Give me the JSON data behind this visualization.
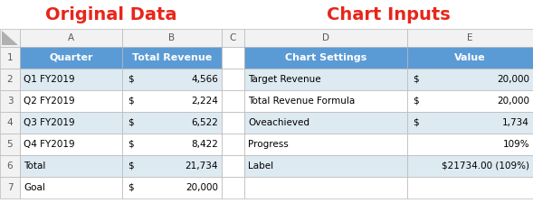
{
  "title_left": "Original Data",
  "title_right": "Chart Inputs",
  "title_color": "#E8251A",
  "title_fontsize": 14,
  "col_header_bg": "#5B9BD5",
  "col_header_color": "#FFFFFF",
  "row_alt_bg": "#DEEAF1",
  "row_bg": "#FFFFFF",
  "grid_color": "#B8B8B8",
  "text_color": "#000000",
  "figsize": [
    5.89,
    2.25
  ],
  "dpi": 100,
  "left_data": [
    [
      "Q1 FY2019",
      "$",
      "4,566"
    ],
    [
      "Q2 FY2019",
      "$",
      "2,224"
    ],
    [
      "Q3 FY2019",
      "$",
      "6,522"
    ],
    [
      "Q4 FY2019",
      "$",
      "8,422"
    ],
    [
      "Total",
      "$",
      "21,734"
    ],
    [
      "Goal",
      "$",
      "20,000"
    ]
  ],
  "right_data": [
    [
      "Target Revenue",
      "$",
      "20,000"
    ],
    [
      "Total Revenue Formula",
      "$",
      "20,000"
    ],
    [
      "Oveachieved",
      "$",
      "1,734"
    ],
    [
      "Progress",
      "",
      "109%"
    ],
    [
      "Label",
      "$21734.00 (109%)",
      ""
    ]
  ]
}
